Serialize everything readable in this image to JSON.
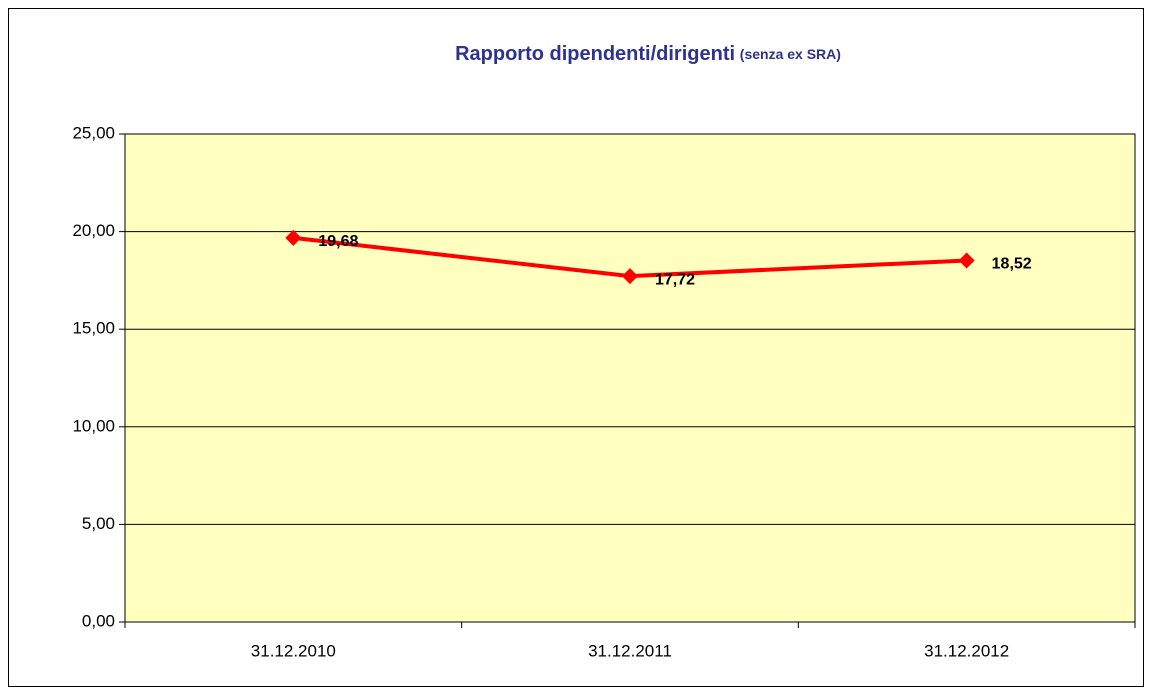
{
  "chart_data": {
    "type": "line",
    "title": "Rapporto dipendenti/dirigenti",
    "subtitle": "(senza ex SRA)",
    "categories": [
      "31.12.2010",
      "31.12.2011",
      "31.12.2012"
    ],
    "series": [
      {
        "name": "Rapporto dipendenti/dirigenti",
        "color": "#ff0000",
        "values": [
          19.68,
          17.72,
          18.52
        ],
        "value_labels": [
          "19,68",
          "17,72",
          "18,52"
        ]
      }
    ],
    "ylim": [
      0,
      25
    ],
    "yticks": [
      {
        "value": 0,
        "label": "0,00"
      },
      {
        "value": 5,
        "label": "5,00"
      },
      {
        "value": 10,
        "label": "10,00"
      },
      {
        "value": 15,
        "label": "15,00"
      },
      {
        "value": 20,
        "label": "20,00"
      },
      {
        "value": 25,
        "label": "25,00"
      }
    ],
    "grid": true,
    "plot_background": "#ffffc0"
  }
}
